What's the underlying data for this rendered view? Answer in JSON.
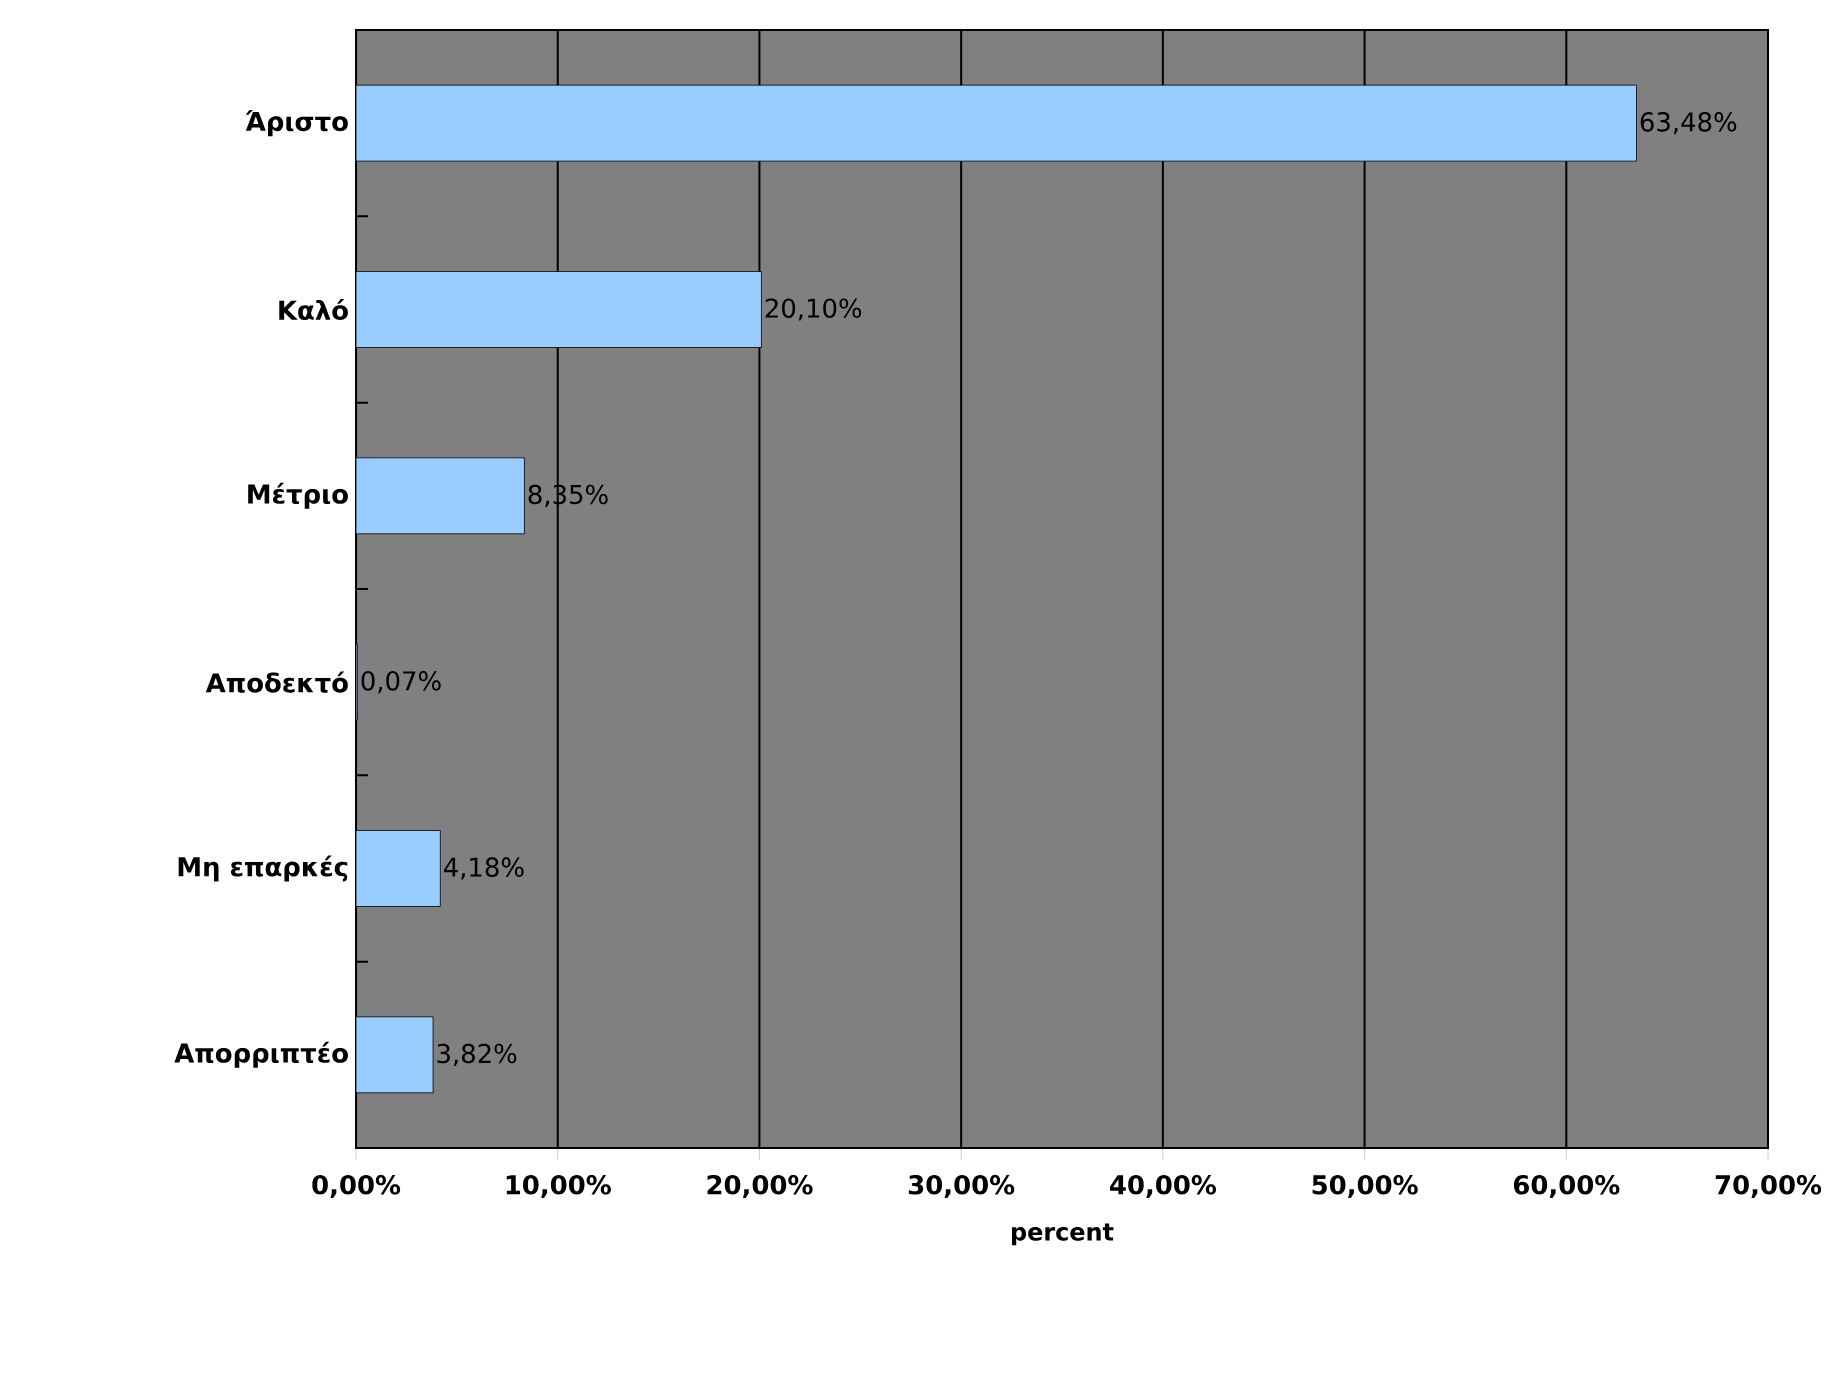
{
  "chart_data": {
    "type": "bar",
    "orientation": "horizontal",
    "xlabel": "percent",
    "categories": [
      "Άριστο",
      "Καλό",
      "Μέτριο",
      "Αποδεκτό",
      "Μη επαρκές",
      "Απορριπτέο"
    ],
    "values": [
      63.48,
      20.1,
      8.35,
      0.07,
      4.18,
      3.82
    ],
    "value_labels": [
      "63,48%",
      "20,10%",
      "8,35%",
      "0,07%",
      "4,18%",
      "3,82%"
    ],
    "color": "#99ccff",
    "xlim": [
      0,
      70
    ],
    "xticks": [
      {
        "value": 0,
        "label": "0,00%"
      },
      {
        "value": 10,
        "label": "10,00%"
      },
      {
        "value": 20,
        "label": "20,00%"
      },
      {
        "value": 30,
        "label": "30,00%"
      },
      {
        "value": 40,
        "label": "40,00%"
      },
      {
        "value": 50,
        "label": "50,00%"
      },
      {
        "value": 60,
        "label": "60,00%"
      },
      {
        "value": 70,
        "label": "70,00%"
      }
    ],
    "grid": "x"
  }
}
